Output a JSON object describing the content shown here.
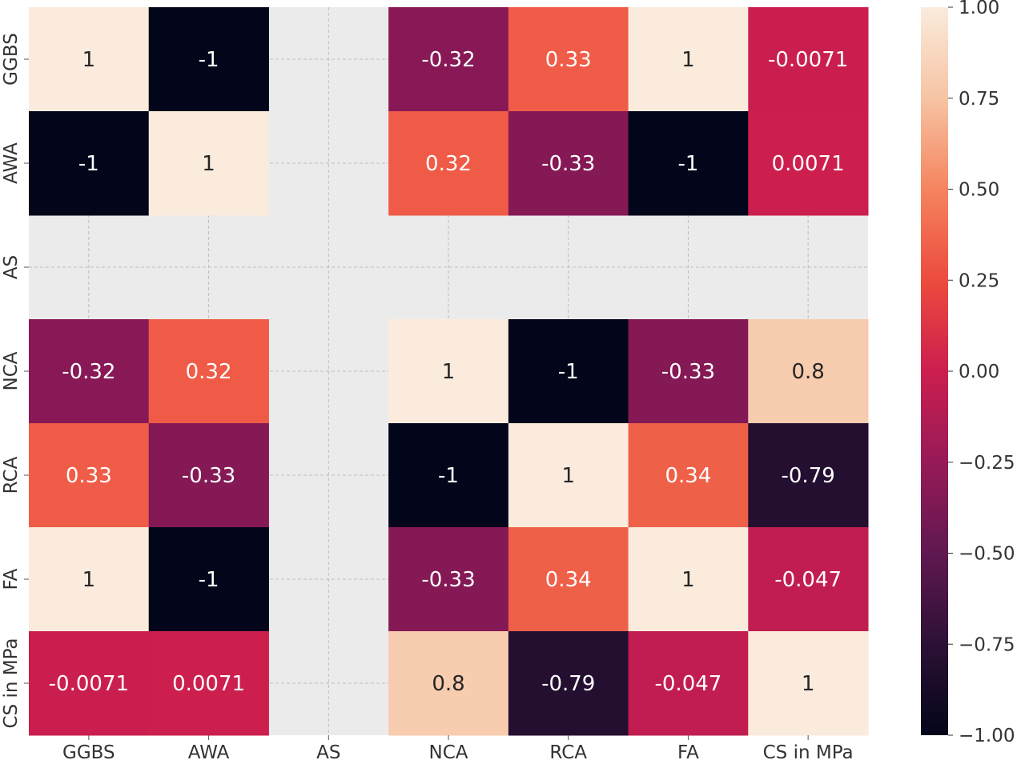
{
  "chart_data": {
    "type": "heatmap",
    "x_labels": [
      "GGBS",
      "AWA",
      "AS",
      "NCA",
      "RCA",
      "FA",
      "CS in MPa"
    ],
    "y_labels": [
      "GGBS",
      "AWA",
      "AS",
      "NCA",
      "RCA",
      "FA",
      "CS in MPa"
    ],
    "values": [
      [
        1,
        -1,
        null,
        -0.32,
        0.33,
        1,
        -0.0071
      ],
      [
        -1,
        1,
        null,
        0.32,
        -0.33,
        -1,
        0.0071
      ],
      [
        null,
        null,
        null,
        null,
        null,
        null,
        null
      ],
      [
        -0.32,
        0.32,
        null,
        1,
        -1,
        -0.33,
        0.8
      ],
      [
        0.33,
        -0.33,
        null,
        -1,
        1,
        0.34,
        -0.79
      ],
      [
        1,
        -1,
        null,
        -0.33,
        0.34,
        1,
        -0.047
      ],
      [
        -0.0071,
        0.0071,
        null,
        0.8,
        -0.79,
        -0.047,
        1
      ]
    ],
    "cell_labels": [
      [
        "1",
        "-1",
        "",
        "-0.32",
        "0.33",
        "1",
        "-0.0071"
      ],
      [
        "-1",
        "1",
        "",
        "0.32",
        "-0.33",
        "-1",
        "0.0071"
      ],
      [
        "",
        "",
        "",
        "",
        "",
        "",
        ""
      ],
      [
        "-0.32",
        "0.32",
        "",
        "1",
        "-1",
        "-0.33",
        "0.8"
      ],
      [
        "0.33",
        "-0.33",
        "",
        "-1",
        "1",
        "0.34",
        "-0.79"
      ],
      [
        "1",
        "-1",
        "",
        "-0.33",
        "0.34",
        "1",
        "-0.047"
      ],
      [
        "-0.0071",
        "0.0071",
        "",
        "0.8",
        "-0.79",
        "-0.047",
        "1"
      ]
    ],
    "colorbar": {
      "range": [
        -1.0,
        1.0
      ],
      "ticks": [
        1.0,
        0.75,
        0.5,
        0.25,
        0.0,
        -0.25,
        -0.5,
        -0.75,
        -1.0
      ],
      "tick_labels": [
        "1.00",
        "0.75",
        "0.50",
        "0.25",
        "0.00",
        "−0.25",
        "−0.50",
        "−0.75",
        "−1.00"
      ],
      "colormap": "rocket"
    },
    "grid": true,
    "missing_color": "#ebebeb"
  }
}
